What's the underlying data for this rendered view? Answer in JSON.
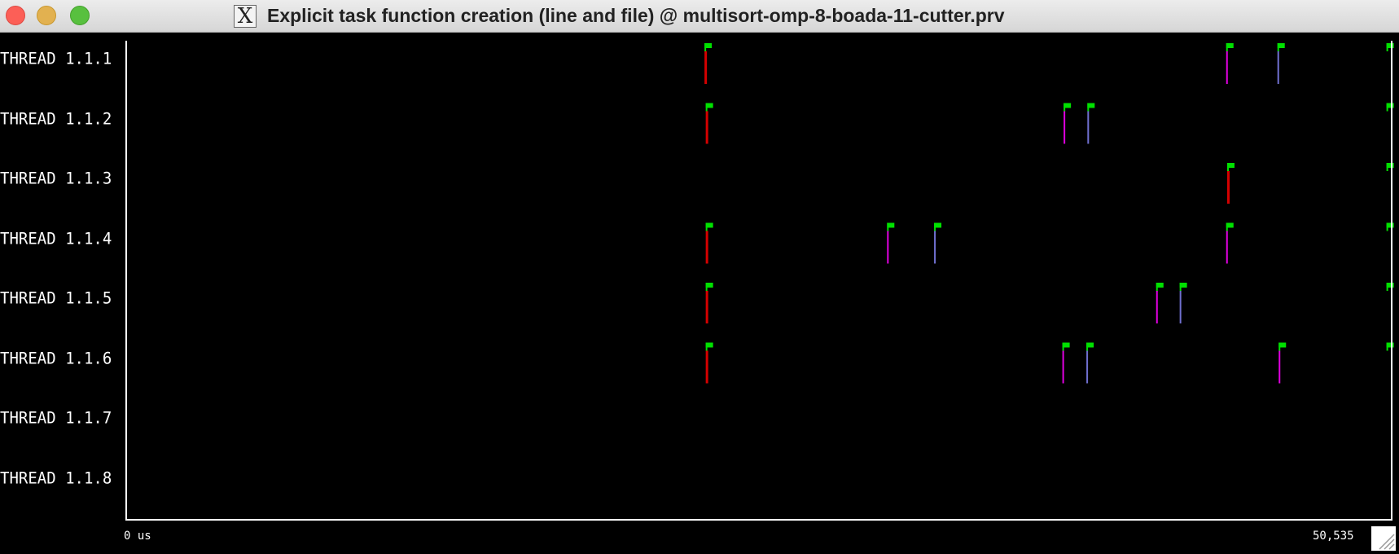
{
  "window": {
    "title": "Explicit task function creation (line and file) @ multisort-omp-8-boada-11-cutter.prv",
    "app_icon": "x11-icon"
  },
  "timeline": {
    "threads": [
      "THREAD 1.1.1",
      "THREAD 1.1.2",
      "THREAD 1.1.3",
      "THREAD 1.1.4",
      "THREAD 1.1.5",
      "THREAD 1.1.6",
      "THREAD 1.1.7",
      "THREAD 1.1.8"
    ],
    "x_start_label": "0 us",
    "x_end_label": "50,535",
    "colors": {
      "background": "#000000",
      "axis": "#ffffff",
      "flag": "#00e000",
      "red": "#d40000",
      "magenta": "#e000e0",
      "blue": "#7070d0"
    },
    "events": [
      {
        "thread": 0,
        "t": 23090,
        "color": "red"
      },
      {
        "thread": 0,
        "t": 43950,
        "color": "magenta"
      },
      {
        "thread": 0,
        "t": 46000,
        "color": "blue"
      },
      {
        "thread": 0,
        "t": 50360,
        "color": "none"
      },
      {
        "thread": 1,
        "t": 23140,
        "color": "red"
      },
      {
        "thread": 1,
        "t": 37450,
        "color": "magenta"
      },
      {
        "thread": 1,
        "t": 38400,
        "color": "blue"
      },
      {
        "thread": 1,
        "t": 50360,
        "color": "none"
      },
      {
        "thread": 2,
        "t": 43990,
        "color": "red"
      },
      {
        "thread": 2,
        "t": 50360,
        "color": "none"
      },
      {
        "thread": 3,
        "t": 23140,
        "color": "red"
      },
      {
        "thread": 3,
        "t": 30390,
        "color": "magenta"
      },
      {
        "thread": 3,
        "t": 32270,
        "color": "blue"
      },
      {
        "thread": 3,
        "t": 43950,
        "color": "magenta"
      },
      {
        "thread": 3,
        "t": 50360,
        "color": "none"
      },
      {
        "thread": 4,
        "t": 23140,
        "color": "red"
      },
      {
        "thread": 4,
        "t": 41150,
        "color": "magenta"
      },
      {
        "thread": 4,
        "t": 42090,
        "color": "blue"
      },
      {
        "thread": 4,
        "t": 50360,
        "color": "none"
      },
      {
        "thread": 5,
        "t": 23140,
        "color": "red"
      },
      {
        "thread": 5,
        "t": 37400,
        "color": "magenta"
      },
      {
        "thread": 5,
        "t": 38360,
        "color": "blue"
      },
      {
        "thread": 5,
        "t": 46050,
        "color": "magenta"
      },
      {
        "thread": 5,
        "t": 50360,
        "color": "none"
      }
    ]
  }
}
